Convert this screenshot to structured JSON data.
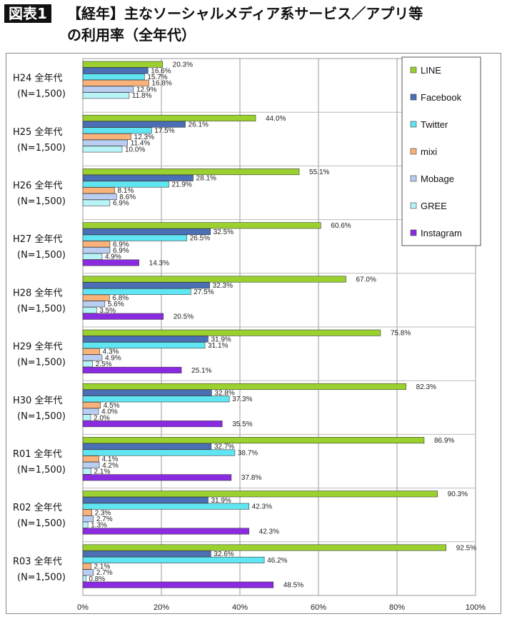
{
  "header": {
    "tag": "図表1",
    "title_line1": "【経年】主なソーシャルメディア系サービス／アプリ等",
    "title_line2": "の利用率（全年代）"
  },
  "colors": {
    "LINE": "#9ad12f",
    "Facebook": "#4a6fb5",
    "Twitter": "#5fe6f2",
    "mixi": "#f9b27a",
    "Mobage": "#b9cef0",
    "GREE": "#b8f3f8",
    "Instagram": "#8a2be2"
  },
  "chart_data": {
    "type": "bar",
    "orientation": "horizontal",
    "categories": [
      "H24 全年代\n(N=1,500)",
      "H25 全年代\n(N=1,500)",
      "H26 全年代\n(N=1,500)",
      "H27 全年代\n(N=1,500)",
      "H28 全年代\n(N=1,500)",
      "H29 全年代\n(N=1,500)",
      "H30 全年代\n(N=1,500)",
      "R01 全年代\n(N=1,500)",
      "R02 全年代\n(N=1,500)",
      "R03 全年代\n(N=1,500)"
    ],
    "series": [
      {
        "name": "LINE",
        "values": [
          20.3,
          44.0,
          55.1,
          60.6,
          67.0,
          75.8,
          82.3,
          86.9,
          90.3,
          92.5
        ]
      },
      {
        "name": "Facebook",
        "values": [
          16.6,
          26.1,
          28.1,
          32.5,
          32.3,
          31.9,
          32.8,
          32.7,
          31.9,
          32.6
        ]
      },
      {
        "name": "Twitter",
        "values": [
          15.7,
          17.5,
          21.9,
          26.5,
          27.5,
          31.1,
          37.3,
          38.7,
          42.3,
          46.2
        ]
      },
      {
        "name": "mixi",
        "values": [
          16.8,
          12.3,
          8.1,
          6.9,
          6.8,
          4.3,
          4.5,
          4.1,
          2.3,
          2.1
        ]
      },
      {
        "name": "Mobage",
        "values": [
          12.9,
          11.4,
          8.6,
          6.9,
          5.6,
          4.9,
          4.0,
          4.2,
          2.7,
          2.7
        ]
      },
      {
        "name": "GREE",
        "values": [
          11.8,
          10.0,
          6.9,
          4.9,
          3.5,
          2.5,
          2.0,
          2.1,
          1.3,
          0.8
        ]
      },
      {
        "name": "Instagram",
        "values": [
          null,
          null,
          null,
          14.3,
          20.5,
          25.1,
          35.5,
          37.8,
          42.3,
          48.5
        ]
      }
    ],
    "xlim": [
      0,
      100
    ],
    "x_ticks": [
      "0%",
      "20%",
      "40%",
      "60%",
      "80%",
      "100%"
    ],
    "grid": true,
    "legend_position": "top-right"
  }
}
